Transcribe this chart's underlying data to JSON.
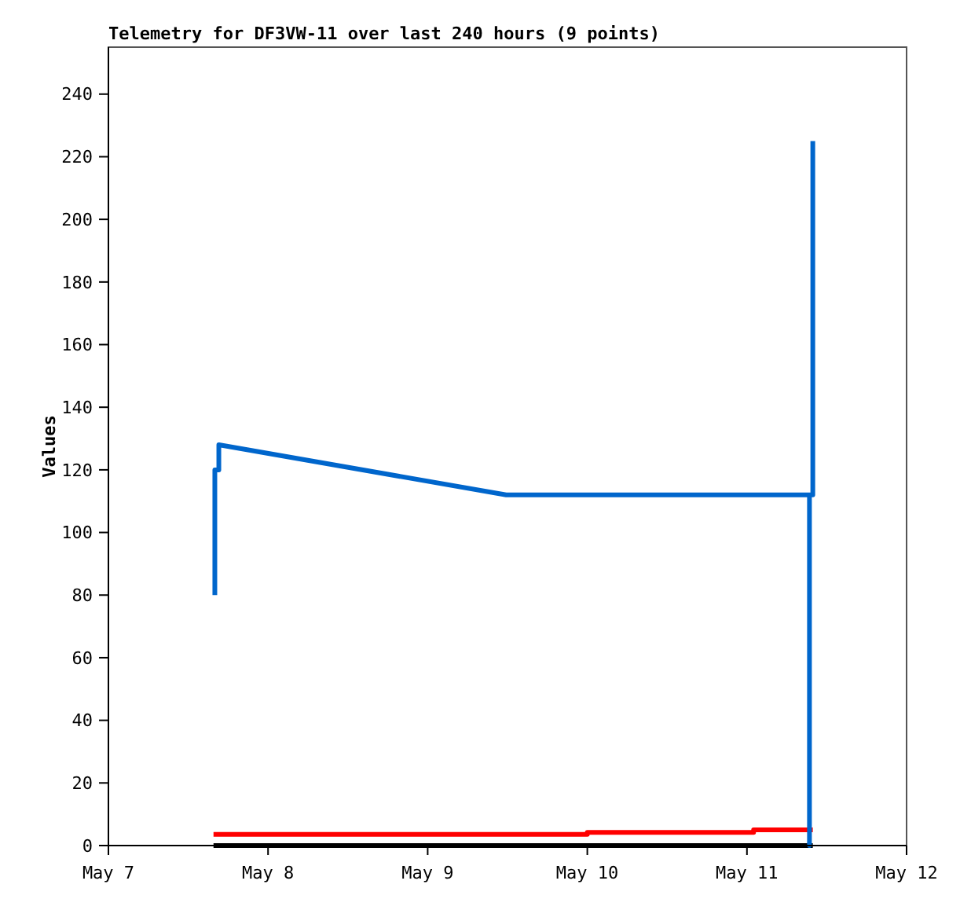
{
  "chart_data": {
    "type": "line",
    "title": "Telemetry for DF3VW-11 over last 240 hours (9 points)",
    "ylabel": "Values",
    "xlim": [
      "--05-07",
      "--05-12"
    ],
    "xticks": [
      {
        "value": "--05-07",
        "label": "May 7"
      },
      {
        "value": "--05-08",
        "label": "May 8"
      },
      {
        "value": "--05-09",
        "label": "May 9"
      },
      {
        "value": "--05-10",
        "label": "May 10"
      },
      {
        "value": "--05-11",
        "label": "May 11"
      },
      {
        "value": "--05-12",
        "label": "May 12"
      }
    ],
    "ylim": [
      0,
      255
    ],
    "yticks": [
      0,
      20,
      40,
      60,
      80,
      100,
      120,
      140,
      160,
      180,
      200,
      220,
      240
    ],
    "grid": false,
    "marker": "none",
    "line_style": "solid",
    "series": [
      {
        "color": "#000000",
        "x": [
          "--05-07T15:48",
          "--05-11T09:54"
        ],
        "values": [
          0,
          0
        ]
      },
      {
        "color": "#ff0000",
        "x": [
          "--05-07T15:48",
          "--05-10T00:00",
          "--05-10T00:00",
          "--05-11T01:00",
          "--05-11T01:00",
          "--05-11T09:54"
        ],
        "values": [
          3.6,
          3.6,
          4.2,
          4.2,
          5.0,
          5.0
        ]
      },
      {
        "color": "#0066cc",
        "x": [
          "--05-07T16:00",
          "--05-07T16:00",
          "--05-07T16:36",
          "--05-07T16:36",
          "--05-09T11:48",
          "--05-11T09:24",
          "--05-11T09:24",
          "--05-11T09:24",
          "--05-11T09:54",
          "--05-11T09:54"
        ],
        "values": [
          80,
          120,
          120,
          128,
          112,
          112,
          0,
          112,
          112,
          225
        ]
      }
    ]
  }
}
